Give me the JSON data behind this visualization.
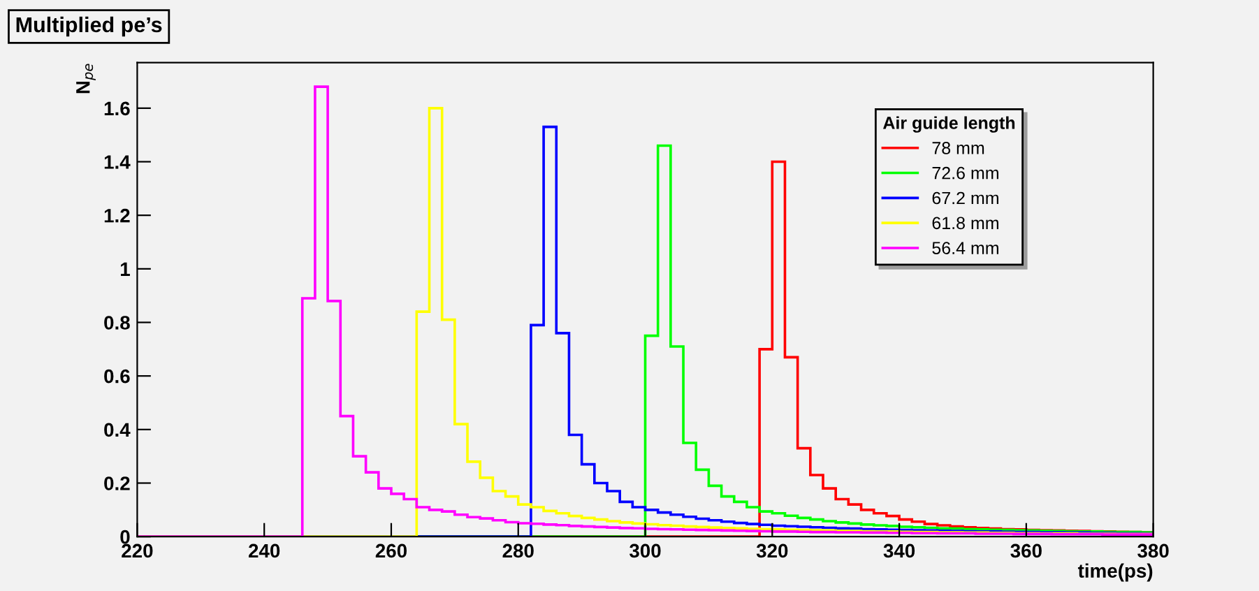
{
  "chart_data": {
    "type": "histogram",
    "title": "Multiplied pe’s",
    "xlabel": "time(ps)",
    "ylabel": "N$_{pe}$",
    "legend_title": "Air guide length",
    "legend": "top right",
    "grid": false,
    "bins": [
      220,
      222,
      224,
      226,
      228,
      230,
      232,
      234,
      236,
      238,
      240,
      242,
      244,
      246,
      248,
      250,
      252,
      254,
      256,
      258,
      260,
      262,
      264,
      266,
      268,
      270,
      272,
      274,
      276,
      278,
      280,
      282,
      284,
      286,
      288,
      290,
      292,
      294,
      296,
      298,
      300,
      302,
      304,
      306,
      308,
      310,
      312,
      314,
      316,
      318,
      320,
      322,
      324,
      326,
      328,
      330,
      332,
      334,
      336,
      338,
      340,
      342,
      344,
      346,
      348,
      350,
      352,
      354,
      356,
      358,
      360,
      362,
      364,
      366,
      368,
      370,
      372,
      374,
      376,
      378,
      380
    ],
    "xlim": [
      220,
      380
    ],
    "xticks": [
      220,
      240,
      260,
      280,
      300,
      320,
      340,
      360,
      380
    ],
    "ylim": [
      0,
      1.77
    ],
    "yticks": [
      0,
      0.2,
      0.4,
      0.6,
      0.8,
      1,
      1.2,
      1.4,
      1.6
    ],
    "series": [
      {
        "name": "78 mm",
        "color": "#ff0000",
        "values": [
          0,
          0,
          0,
          0,
          0,
          0,
          0,
          0,
          0,
          0,
          0,
          0,
          0,
          0,
          0,
          0,
          0,
          0,
          0,
          0,
          0,
          0,
          0,
          0,
          0,
          0,
          0,
          0,
          0,
          0,
          0,
          0,
          0,
          0,
          0,
          0,
          0,
          0,
          0,
          0,
          0,
          0,
          0,
          0,
          0,
          0,
          0,
          0,
          0,
          0.7,
          1.4,
          0.67,
          0.33,
          0.23,
          0.18,
          0.14,
          0.12,
          0.1,
          0.087,
          0.077,
          0.064,
          0.056,
          0.047,
          0.042,
          0.038,
          0.035,
          0.032,
          0.03,
          0.028,
          0.027,
          0.025,
          0.024,
          0.023,
          0.022,
          0.021,
          0.02,
          0.019,
          0.018,
          0.017,
          0.016
        ]
      },
      {
        "name": "72.6 mm",
        "color": "#00ff00",
        "values": [
          0,
          0,
          0,
          0,
          0,
          0,
          0,
          0,
          0,
          0,
          0,
          0,
          0,
          0,
          0,
          0,
          0,
          0,
          0,
          0,
          0,
          0,
          0,
          0,
          0,
          0,
          0,
          0,
          0,
          0,
          0,
          0,
          0,
          0,
          0,
          0,
          0,
          0,
          0,
          0,
          0.75,
          1.46,
          0.71,
          0.35,
          0.25,
          0.19,
          0.15,
          0.13,
          0.11,
          0.094,
          0.087,
          0.078,
          0.07,
          0.064,
          0.058,
          0.053,
          0.049,
          0.045,
          0.042,
          0.04,
          0.037,
          0.035,
          0.033,
          0.031,
          0.03,
          0.028,
          0.027,
          0.026,
          0.025,
          0.024,
          0.023,
          0.022,
          0.021,
          0.02,
          0.019,
          0.019,
          0.018,
          0.017,
          0.017,
          0.016
        ]
      },
      {
        "name": "67.2 mm",
        "color": "#0000ff",
        "values": [
          0,
          0,
          0,
          0,
          0,
          0,
          0,
          0,
          0,
          0,
          0,
          0,
          0,
          0,
          0,
          0,
          0,
          0,
          0,
          0,
          0,
          0,
          0,
          0,
          0,
          0,
          0,
          0,
          0,
          0,
          0,
          0.79,
          1.53,
          0.76,
          0.38,
          0.27,
          0.2,
          0.17,
          0.13,
          0.11,
          0.1,
          0.09,
          0.082,
          0.074,
          0.067,
          0.061,
          0.056,
          0.051,
          0.047,
          0.044,
          0.041,
          0.039,
          0.037,
          0.035,
          0.033,
          0.031,
          0.03,
          0.028,
          0.027,
          0.026,
          0.025,
          0.024,
          0.023,
          0.022,
          0.021,
          0.02,
          0.019,
          0.019,
          0.018,
          0.017,
          0.017,
          0.016,
          0.016,
          0.015,
          0.015,
          0.014,
          0.014,
          0.013,
          0.013,
          0.012
        ]
      },
      {
        "name": "61.8 mm",
        "color": "#ffff00",
        "values": [
          0,
          0,
          0,
          0,
          0,
          0,
          0,
          0,
          0,
          0,
          0,
          0,
          0,
          0,
          0,
          0,
          0,
          0,
          0,
          0,
          0,
          0,
          0.84,
          1.6,
          0.81,
          0.42,
          0.28,
          0.22,
          0.17,
          0.15,
          0.12,
          0.11,
          0.096,
          0.087,
          0.077,
          0.07,
          0.064,
          0.058,
          0.053,
          0.049,
          0.046,
          0.043,
          0.041,
          0.038,
          0.036,
          0.034,
          0.032,
          0.031,
          0.029,
          0.028,
          0.027,
          0.026,
          0.025,
          0.024,
          0.023,
          0.022,
          0.021,
          0.02,
          0.019,
          0.019,
          0.018,
          0.017,
          0.017,
          0.016,
          0.016,
          0.015,
          0.015,
          0.014,
          0.014,
          0.013,
          0.013,
          0.012,
          0.012,
          0.012,
          0.011,
          0.011,
          0.011,
          0.01,
          0.01,
          0.01
        ]
      },
      {
        "name": "56.4 mm",
        "color": "#ff00ff",
        "values": [
          0,
          0,
          0,
          0,
          0,
          0,
          0,
          0,
          0,
          0,
          0,
          0,
          0,
          0.89,
          1.68,
          0.88,
          0.45,
          0.3,
          0.24,
          0.18,
          0.16,
          0.14,
          0.11,
          0.1,
          0.094,
          0.082,
          0.073,
          0.068,
          0.061,
          0.054,
          0.05,
          0.048,
          0.045,
          0.043,
          0.04,
          0.038,
          0.036,
          0.034,
          0.032,
          0.031,
          0.029,
          0.028,
          0.027,
          0.026,
          0.025,
          0.024,
          0.023,
          0.022,
          0.021,
          0.02,
          0.019,
          0.019,
          0.018,
          0.017,
          0.017,
          0.016,
          0.016,
          0.015,
          0.015,
          0.014,
          0.014,
          0.013,
          0.013,
          0.012,
          0.012,
          0.012,
          0.011,
          0.011,
          0.011,
          0.01,
          0.01,
          0.01,
          0.009,
          0.009,
          0.009,
          0.009,
          0.008,
          0.008,
          0.008,
          0.008
        ]
      }
    ]
  }
}
